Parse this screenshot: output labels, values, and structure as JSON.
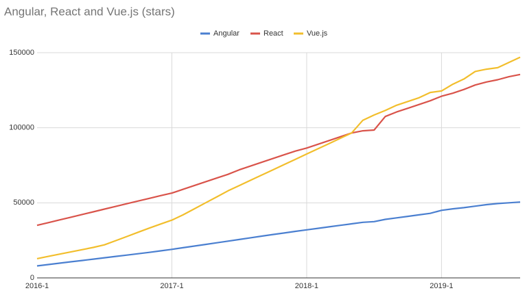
{
  "chart_data": {
    "type": "line",
    "title": "Angular, React and Vue.js (stars)",
    "categories": [
      "2016-1",
      null,
      null,
      null,
      null,
      null,
      null,
      null,
      null,
      null,
      null,
      null,
      "2017-1",
      null,
      null,
      null,
      null,
      null,
      null,
      null,
      null,
      null,
      null,
      null,
      "2018-1",
      null,
      null,
      null,
      null,
      null,
      null,
      null,
      null,
      null,
      null,
      null,
      "2019-1",
      null,
      null,
      null,
      null,
      null,
      null,
      null
    ],
    "series": [
      {
        "name": "Angular",
        "color": "#4a7fd0",
        "values": [
          8000,
          8900,
          9800,
          10700,
          11600,
          12500,
          13400,
          14300,
          15200,
          16100,
          17000,
          18000,
          19000,
          20100,
          21200,
          22300,
          23400,
          24500,
          25600,
          26700,
          27800,
          28900,
          29900,
          31000,
          32000,
          33000,
          34000,
          35000,
          36000,
          37000,
          37500,
          39000,
          40000,
          41000,
          42000,
          43000,
          45000,
          46000,
          46800,
          47800,
          48800,
          49500,
          50000,
          50500
        ]
      },
      {
        "name": "React",
        "color": "#d9534a",
        "values": [
          35000,
          36800,
          38600,
          40400,
          42200,
          44000,
          45800,
          47600,
          49400,
          51200,
          53000,
          54800,
          56500,
          59000,
          61500,
          64000,
          66500,
          69000,
          72000,
          74500,
          77000,
          79500,
          82000,
          84500,
          86500,
          89000,
          91500,
          94000,
          96500,
          98000,
          98500,
          107500,
          110500,
          113000,
          115500,
          118000,
          121000,
          123000,
          125500,
          128500,
          130500,
          132000,
          134000,
          135500
        ]
      },
      {
        "name": "Vue.js",
        "color": "#f2be2c",
        "values": [
          12800,
          14300,
          15800,
          17300,
          18800,
          20300,
          22000,
          24800,
          27600,
          30400,
          33200,
          35900,
          38500,
          42000,
          46000,
          50000,
          54000,
          58000,
          61500,
          65000,
          68500,
          72000,
          75500,
          79000,
          82500,
          86000,
          89500,
          93000,
          96500,
          105000,
          108500,
          111500,
          115000,
          117500,
          120000,
          123500,
          124500,
          129000,
          132500,
          137500,
          139000,
          140000,
          143500,
          147000
        ]
      }
    ],
    "ylim": [
      0,
      150000
    ],
    "yticks": [
      0,
      50000,
      100000,
      150000
    ],
    "grid": true,
    "legend": "top"
  }
}
